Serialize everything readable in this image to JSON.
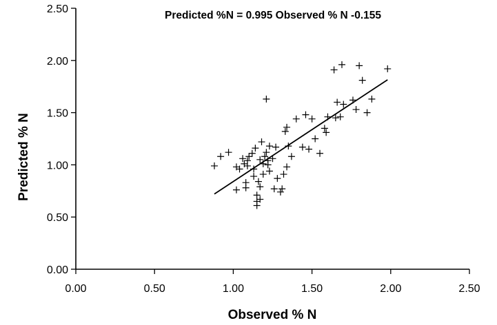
{
  "chart_data": {
    "type": "scatter",
    "title": "Predicted %N = 0.995  Observed  % N -0.155",
    "xlabel": "Observed % N",
    "ylabel": "Predicted % N",
    "xlim": [
      0,
      2.5
    ],
    "ylim": [
      0,
      2.5
    ],
    "xticks": [
      "0.00",
      "0.50",
      "1.00",
      "1.50",
      "2.00",
      "2.50"
    ],
    "yticks": [
      "0.00",
      "0.50",
      "1.00",
      "1.50",
      "2.00",
      "2.50"
    ],
    "grid": false,
    "marker": "plus",
    "fit_line": {
      "slope": 0.995,
      "intercept": -0.155,
      "x_range": [
        0.88,
        1.98
      ]
    },
    "points": [
      [
        0.88,
        0.99
      ],
      [
        0.92,
        1.08
      ],
      [
        0.97,
        1.12
      ],
      [
        1.02,
        0.98
      ],
      [
        1.02,
        0.76
      ],
      [
        1.04,
        0.96
      ],
      [
        1.06,
        1.06
      ],
      [
        1.07,
        1.01
      ],
      [
        1.08,
        0.83
      ],
      [
        1.08,
        0.78
      ],
      [
        1.09,
        0.99
      ],
      [
        1.09,
        1.04
      ],
      [
        1.1,
        1.08
      ],
      [
        1.12,
        1.11
      ],
      [
        1.13,
        0.96
      ],
      [
        1.13,
        0.89
      ],
      [
        1.14,
        1.16
      ],
      [
        1.15,
        0.71
      ],
      [
        1.15,
        0.65
      ],
      [
        1.15,
        0.61
      ],
      [
        1.16,
        0.84
      ],
      [
        1.17,
        0.79
      ],
      [
        1.17,
        0.67
      ],
      [
        1.17,
        1.05
      ],
      [
        1.18,
        1.22
      ],
      [
        1.19,
        1.01
      ],
      [
        1.19,
        0.91
      ],
      [
        1.2,
        1.08
      ],
      [
        1.21,
        1.12
      ],
      [
        1.21,
        1.63
      ],
      [
        1.22,
        1.04
      ],
      [
        1.22,
        1.0
      ],
      [
        1.23,
        0.94
      ],
      [
        1.23,
        1.18
      ],
      [
        1.25,
        1.06
      ],
      [
        1.26,
        0.77
      ],
      [
        1.27,
        1.17
      ],
      [
        1.28,
        0.87
      ],
      [
        1.3,
        0.74
      ],
      [
        1.31,
        0.77
      ],
      [
        1.32,
        0.91
      ],
      [
        1.33,
        1.32
      ],
      [
        1.34,
        1.36
      ],
      [
        1.34,
        0.98
      ],
      [
        1.35,
        1.18
      ],
      [
        1.37,
        1.08
      ],
      [
        1.4,
        1.44
      ],
      [
        1.44,
        1.17
      ],
      [
        1.46,
        1.48
      ],
      [
        1.48,
        1.15
      ],
      [
        1.5,
        1.44
      ],
      [
        1.52,
        1.25
      ],
      [
        1.55,
        1.11
      ],
      [
        1.58,
        1.35
      ],
      [
        1.59,
        1.31
      ],
      [
        1.6,
        1.46
      ],
      [
        1.64,
        1.91
      ],
      [
        1.65,
        1.45
      ],
      [
        1.66,
        1.6
      ],
      [
        1.68,
        1.46
      ],
      [
        1.69,
        1.96
      ],
      [
        1.7,
        1.58
      ],
      [
        1.76,
        1.62
      ],
      [
        1.78,
        1.53
      ],
      [
        1.8,
        1.95
      ],
      [
        1.82,
        1.81
      ],
      [
        1.85,
        1.5
      ],
      [
        1.88,
        1.63
      ],
      [
        1.98,
        1.92
      ]
    ]
  }
}
